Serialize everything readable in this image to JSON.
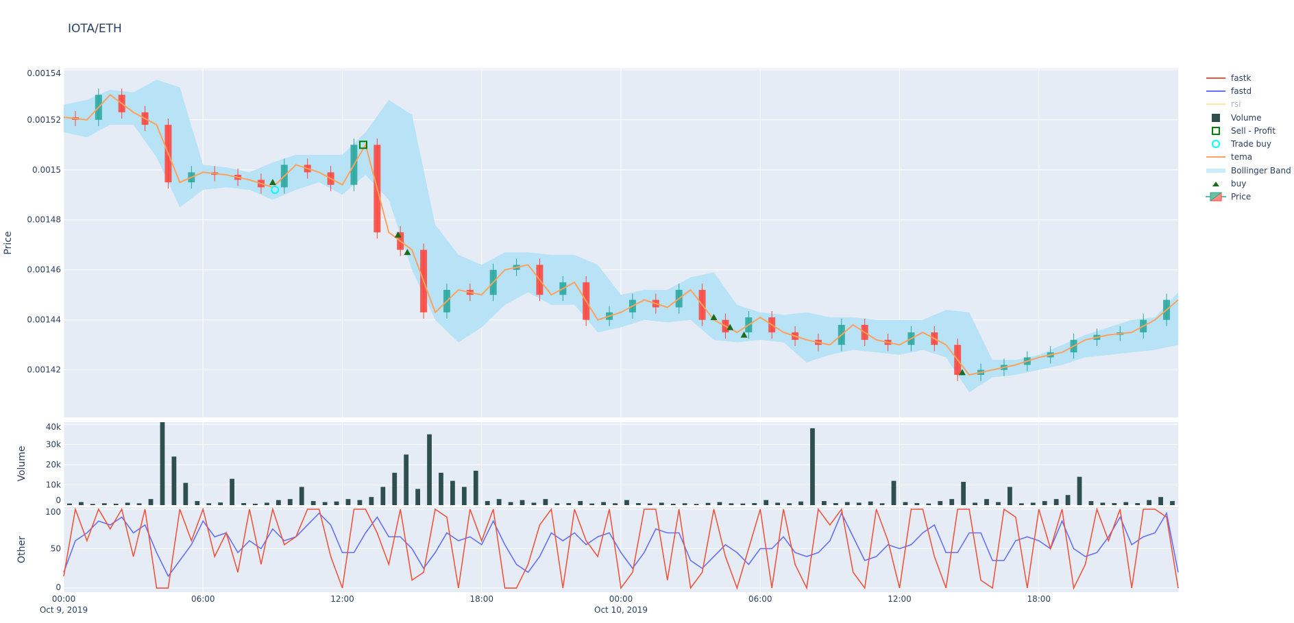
{
  "title": "IOTA/ETH",
  "colors": {
    "increasing": "#26a69a",
    "decreasing": "#ff4136",
    "band": "#b8e2f6",
    "tema": "#ffa15a",
    "volume": "#2f4f4f",
    "fastk": "#ef553b",
    "fastd": "#636efa",
    "rsi": "#ffe5a8",
    "sell": "#008000",
    "trade_buy": "#00ffff",
    "buy": "#1e6b1e",
    "plot_bg": "#e5ecf6"
  },
  "legend": [
    {
      "label": "fastk",
      "icon": "line-red"
    },
    {
      "label": "fastd",
      "icon": "line-blue"
    },
    {
      "label": "rsi",
      "icon": "line-faded",
      "hidden": true
    },
    {
      "label": "Volume",
      "icon": "square-dark"
    },
    {
      "label": "Sell - Profit",
      "icon": "square-open-green"
    },
    {
      "label": "Trade buy",
      "icon": "circle-open-cyan"
    },
    {
      "label": "tema",
      "icon": "line-orange"
    },
    {
      "label": "Bollinger Band",
      "icon": "band-fill"
    },
    {
      "label": "buy",
      "icon": "triangle-up-green"
    },
    {
      "label": "Price",
      "icon": "candlestick"
    }
  ],
  "chart_data": [
    {
      "type": "candlestick",
      "ylabel": "Price",
      "ylim": [
        0.001401,
        0.0015405
      ],
      "yticks": [
        "0.00154",
        "0.00152",
        "0.0015",
        "0.00148",
        "0.00146",
        "0.00144",
        "0.00142"
      ],
      "ytick_values": [
        0.00154,
        0.00152,
        0.0015,
        0.00148,
        0.00146,
        0.00144,
        0.00142
      ],
      "x_hours_from": "Oct 9, 2019 00:00",
      "close_hourly": [
        0.001521,
        0.00152,
        0.00153,
        0.001523,
        0.001518,
        0.001495,
        0.001499,
        0.001498,
        0.001496,
        0.001493,
        0.001502,
        0.001499,
        0.001494,
        0.00151,
        0.001475,
        0.001468,
        0.001443,
        0.001452,
        0.00145,
        0.00146,
        0.001462,
        0.00145,
        0.001455,
        0.00144,
        0.001443,
        0.001448,
        0.001445,
        0.001452,
        0.00144,
        0.001435,
        0.001441,
        0.001435,
        0.001432,
        0.00143,
        0.001438,
        0.001432,
        0.00143,
        0.001435,
        0.00143,
        0.001418,
        0.00142,
        0.001422,
        0.001425,
        0.001427,
        0.001432,
        0.001434,
        0.001435,
        0.00144,
        0.001448
      ],
      "bb_upper": [
        0.001526,
        0.001528,
        0.001532,
        0.001531,
        0.001536,
        0.001533,
        0.001502,
        0.001501,
        0.001499,
        0.001503,
        0.001506,
        0.001506,
        0.001506,
        0.001515,
        0.001528,
        0.001522,
        0.001478,
        0.001466,
        0.001462,
        0.001467,
        0.001467,
        0.001466,
        0.001466,
        0.001462,
        0.00145,
        0.001452,
        0.001452,
        0.001457,
        0.001459,
        0.001446,
        0.001443,
        0.001442,
        0.001443,
        0.001441,
        0.001441,
        0.00144,
        0.00144,
        0.00144,
        0.001444,
        0.001443,
        0.001424,
        0.001424,
        0.001426,
        0.00143,
        0.001434,
        0.001437,
        0.00144,
        0.001441,
        0.001451
      ],
      "bb_lower": [
        0.001515,
        0.001513,
        0.001518,
        0.001518,
        0.001505,
        0.001485,
        0.001492,
        0.001493,
        0.001492,
        0.001488,
        0.001492,
        0.001495,
        0.00149,
        0.001498,
        0.001488,
        0.00146,
        0.00144,
        0.001431,
        0.001437,
        0.001446,
        0.001451,
        0.001446,
        0.001446,
        0.001435,
        0.001437,
        0.00144,
        0.001439,
        0.00144,
        0.001432,
        0.001431,
        0.001432,
        0.001431,
        0.001423,
        0.001426,
        0.001428,
        0.001427,
        0.001426,
        0.001428,
        0.001425,
        0.001411,
        0.001417,
        0.001418,
        0.00142,
        0.001422,
        0.001425,
        0.001426,
        0.001427,
        0.001428,
        0.00143
      ],
      "buy": [
        [
          9.0,
          0.001495
        ],
        [
          14.4,
          0.001474
        ],
        [
          14.8,
          0.001467
        ],
        [
          28.0,
          0.001441
        ],
        [
          28.7,
          0.001437
        ],
        [
          29.3,
          0.001434
        ],
        [
          38.7,
          0.001419
        ]
      ],
      "sell_profit": [
        [
          12.9,
          0.00151
        ]
      ],
      "trade_buy": [
        [
          9.1,
          0.001492
        ]
      ]
    },
    {
      "type": "bar",
      "ylabel": "Volume",
      "ylim": [
        0,
        41000
      ],
      "yticks": [
        "0",
        "10k",
        "20k",
        "30k",
        "40k"
      ],
      "ytick_values": [
        0,
        10000,
        20000,
        30000,
        40000
      ],
      "values_half_hourly": [
        800,
        1500,
        600,
        900,
        700,
        1200,
        900,
        3000,
        41000,
        24000,
        11000,
        2000,
        900,
        1300,
        13000,
        1000,
        700,
        1200,
        2500,
        3000,
        9000,
        2000,
        1500,
        1800,
        3000,
        2500,
        4000,
        9000,
        16000,
        25000,
        8000,
        35000,
        16000,
        12000,
        9000,
        17000,
        2000,
        3000,
        1500,
        2500,
        1200,
        3000,
        900,
        1000,
        2000,
        800,
        1500,
        900,
        2500,
        1000,
        800,
        1200,
        700,
        900,
        600,
        1100,
        1500,
        900,
        800,
        1000,
        2500,
        1200,
        900,
        1800,
        38000,
        2000,
        1000,
        1500,
        1200,
        1800,
        900,
        12000,
        1500,
        1000,
        800,
        2000,
        3000,
        11500,
        1200,
        3000,
        1500,
        9000,
        900,
        1200,
        2000,
        3000,
        5000,
        14000,
        2000,
        1200,
        1000,
        1500,
        1000,
        2500,
        4000,
        2000
      ]
    },
    {
      "type": "line",
      "ylabel": "Other",
      "ylim": [
        -5.2,
        102.6
      ],
      "yticks": [
        "0",
        "50",
        "100"
      ],
      "ytick_values": [
        0,
        50,
        100
      ],
      "xticks": [
        {
          "l1": "00:00",
          "l2": "Oct 9, 2019",
          "h": 0
        },
        {
          "l1": "06:00",
          "l2": "",
          "h": 6
        },
        {
          "l1": "12:00",
          "l2": "",
          "h": 12
        },
        {
          "l1": "18:00",
          "l2": "",
          "h": 18
        },
        {
          "l1": "00:00",
          "l2": "Oct 10, 2019",
          "h": 24
        },
        {
          "l1": "06:00",
          "l2": "",
          "h": 30
        },
        {
          "l1": "12:00",
          "l2": "",
          "h": 36
        },
        {
          "l1": "18:00",
          "l2": "",
          "h": 42
        }
      ],
      "series": [
        {
          "name": "fastk",
          "values": [
            15,
            100,
            60,
            100,
            75,
            100,
            40,
            100,
            0,
            0,
            100,
            60,
            100,
            40,
            70,
            20,
            100,
            30,
            100,
            55,
            65,
            100,
            100,
            40,
            0,
            100,
            100,
            70,
            30,
            100,
            10,
            20,
            100,
            90,
            0,
            100,
            60,
            100,
            0,
            0,
            30,
            80,
            100,
            0,
            100,
            60,
            40,
            100,
            0,
            20,
            100,
            100,
            10,
            100,
            0,
            20,
            100,
            40,
            0,
            50,
            100,
            0,
            100,
            30,
            0,
            100,
            80,
            100,
            20,
            0,
            100,
            60,
            0,
            100,
            100,
            40,
            0,
            100,
            100,
            10,
            0,
            100,
            90,
            0,
            100,
            50,
            100,
            0,
            30,
            100,
            60,
            100,
            0,
            100,
            100,
            90,
            0
          ]
        },
        {
          "name": "fastd",
          "values": [
            20,
            60,
            70,
            85,
            80,
            90,
            70,
            80,
            45,
            15,
            35,
            55,
            85,
            65,
            70,
            45,
            60,
            50,
            75,
            60,
            65,
            80,
            95,
            80,
            45,
            45,
            70,
            90,
            65,
            65,
            50,
            25,
            45,
            70,
            60,
            65,
            55,
            85,
            55,
            30,
            20,
            40,
            70,
            60,
            70,
            55,
            65,
            70,
            45,
            25,
            45,
            75,
            70,
            70,
            35,
            25,
            40,
            55,
            45,
            30,
            50,
            50,
            65,
            45,
            40,
            45,
            60,
            95,
            65,
            35,
            40,
            55,
            50,
            55,
            70,
            80,
            45,
            45,
            70,
            70,
            35,
            35,
            60,
            65,
            60,
            50,
            85,
            50,
            40,
            45,
            65,
            90,
            55,
            65,
            70,
            95,
            20
          ]
        },
        {
          "name": "rsi",
          "values": [],
          "hidden": true
        }
      ]
    }
  ]
}
